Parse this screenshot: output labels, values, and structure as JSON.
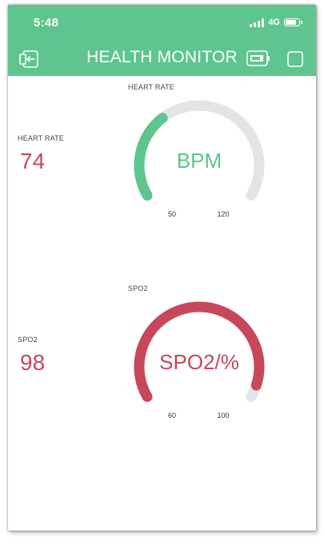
{
  "status_bar": {
    "time": "5:48",
    "network": "4G",
    "battery_level": 0.85
  },
  "header": {
    "title": "HEALTH MONITOR",
    "icons": [
      "exit-icon",
      "device-icon",
      "square-icon"
    ]
  },
  "widgets": {
    "hr_value": {
      "label": "HEART RATE",
      "value": "74"
    },
    "hr_gauge": {
      "label": "HEART RATE",
      "center_text": "BPM",
      "min_label": "50",
      "max_label": "120",
      "value": 74,
      "min": 50,
      "max": 120,
      "color": "#5ec58e",
      "track_color": "#e3e4e5"
    },
    "spo2_value": {
      "label": "SPO2",
      "value": "98"
    },
    "spo2_gauge": {
      "label": "SPO2",
      "center_text": "SPO2/%",
      "min_label": "60",
      "max_label": "100",
      "value": 98,
      "min": 60,
      "max": 100,
      "color": "#c8475a",
      "track_color": "#e3e4e5"
    }
  },
  "colors": {
    "header_bg": "#5ec58e",
    "value_text": "#c8475a"
  }
}
